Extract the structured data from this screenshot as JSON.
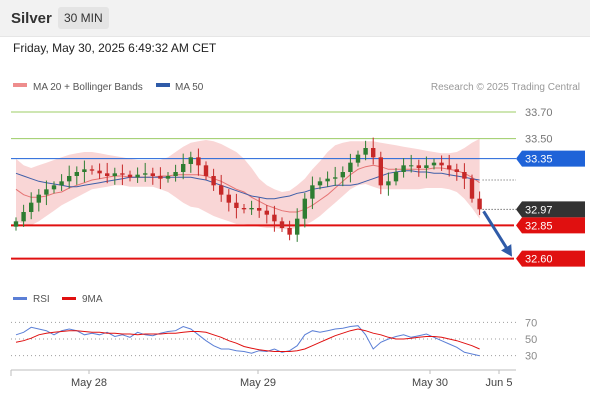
{
  "header": {
    "instrument": "Silver",
    "timeframe": "30 MIN",
    "datetime": "Friday, May 30, 2025 6:49:32 AM CET"
  },
  "legend": {
    "ma20": "MA 20 + Bollinger Bands",
    "ma50": "MA 50",
    "credit": "Research © 2025 Trading Central",
    "rsi": "RSI",
    "rsi_ma": "9MA"
  },
  "colors": {
    "up_candle": "#2e7d32",
    "down_candle": "#c62828",
    "bollinger_fill": "#f8cfcf",
    "ma20": "#e57373",
    "ma50": "#3f5fa8",
    "resistance_green": "#9ccc65",
    "pivot_blue": "#1f63d8",
    "support_red": "#e01010",
    "last_price": "#333333",
    "arrow": "#2f5ba8",
    "rsi_line": "#5b7fd6",
    "rsi_ma_line": "#e01010"
  },
  "chart_data": [
    {
      "type": "candlestick",
      "series": [
        {
          "name": "MA 20 + Bollinger Bands"
        },
        {
          "name": "MA 50"
        }
      ],
      "x_ticks": [
        "May 28",
        "May 29",
        "May 30",
        "Jun 5"
      ],
      "ylim": [
        32.38,
        33.79
      ],
      "levels": [
        {
          "value": 33.7,
          "label": "33.70",
          "kind": "resistance",
          "style": "line",
          "tag": "plain"
        },
        {
          "value": 33.5,
          "label": "33.50",
          "kind": "resistance",
          "style": "line",
          "tag": "plain"
        },
        {
          "value": 33.35,
          "label": "33.35",
          "kind": "pivot",
          "style": "line",
          "tag": "box"
        },
        {
          "value": 32.97,
          "label": "32.97",
          "kind": "last",
          "style": "dotted",
          "tag": "box"
        },
        {
          "value": 32.85,
          "label": "32.85",
          "kind": "support",
          "style": "thick",
          "tag": "box"
        },
        {
          "value": 32.6,
          "label": "32.60",
          "kind": "support",
          "style": "thick",
          "tag": "box"
        }
      ],
      "close": [
        32.88,
        32.95,
        33.02,
        33.08,
        33.12,
        33.15,
        33.18,
        33.22,
        33.25,
        33.27,
        33.26,
        33.24,
        33.22,
        33.24,
        33.23,
        33.21,
        33.23,
        33.24,
        33.22,
        33.2,
        33.22,
        33.25,
        33.31,
        33.36,
        33.3,
        33.22,
        33.15,
        33.08,
        33.02,
        32.98,
        32.97,
        32.98,
        32.96,
        32.93,
        32.88,
        32.83,
        32.78,
        32.9,
        33.05,
        33.15,
        33.18,
        33.2,
        33.21,
        33.25,
        33.32,
        33.38,
        33.43,
        33.36,
        33.15,
        33.18,
        33.25,
        33.3,
        33.3,
        33.28,
        33.3,
        33.32,
        33.3,
        33.27,
        33.25,
        33.2,
        33.05,
        32.97
      ],
      "ma20": [
        33.12,
        33.08,
        33.06,
        33.06,
        33.07,
        33.09,
        33.1,
        33.13,
        33.15,
        33.17,
        33.19,
        33.2,
        33.21,
        33.22,
        33.22,
        33.21,
        33.21,
        33.21,
        33.21,
        33.22,
        33.22,
        33.23,
        33.23,
        33.23,
        33.23,
        33.22,
        33.2,
        33.18,
        33.15,
        33.12,
        33.1,
        33.06,
        33.03,
        33,
        32.98,
        32.96,
        32.95,
        32.95,
        32.97,
        33,
        33.04,
        33.08,
        33.13,
        33.18,
        33.23,
        33.27,
        33.29,
        33.3,
        33.29,
        33.27,
        33.27,
        33.27,
        33.27,
        33.27,
        33.27,
        33.28,
        33.28,
        33.27,
        33.26,
        33.24,
        33.21,
        33.17
      ],
      "ma50": [
        33.24,
        33.22,
        33.2,
        33.18,
        33.17,
        33.16,
        33.15,
        33.14,
        33.14,
        33.15,
        33.16,
        33.17,
        33.18,
        33.19,
        33.2,
        33.21,
        33.21,
        33.21,
        33.21,
        33.21,
        33.21,
        33.21,
        33.21,
        33.21,
        33.2,
        33.19,
        33.17,
        33.15,
        33.13,
        33.11,
        33.09,
        33.07,
        33.06,
        33.05,
        33.05,
        33.06,
        33.07,
        33.09,
        33.1,
        33.12,
        33.13,
        33.14,
        33.15,
        33.15,
        33.15,
        33.16,
        33.18,
        33.2,
        33.22,
        33.24,
        33.25,
        33.26,
        33.26,
        33.25,
        33.25,
        33.24,
        33.24,
        33.23,
        33.22,
        33.21,
        33.2,
        33.19
      ],
      "bb_upper": [
        33.35,
        33.3,
        33.28,
        33.3,
        33.32,
        33.34,
        33.36,
        33.38,
        33.39,
        33.4,
        33.4,
        33.39,
        33.38,
        33.37,
        33.36,
        33.35,
        33.34,
        33.34,
        33.34,
        33.34,
        33.36,
        33.4,
        33.44,
        33.47,
        33.48,
        33.49,
        33.48,
        33.46,
        33.43,
        33.4,
        33.35,
        33.28,
        33.2,
        33.15,
        33.12,
        33.1,
        33.11,
        33.15,
        33.2,
        33.27,
        33.33,
        33.4,
        33.45,
        33.47,
        33.48,
        33.48,
        33.48,
        33.48,
        33.47,
        33.46,
        33.45,
        33.44,
        33.43,
        33.42,
        33.41,
        33.4,
        33.39,
        33.39,
        33.4,
        33.43,
        33.47,
        33.5
      ],
      "bb_lower": [
        32.88,
        32.86,
        32.85,
        32.88,
        32.92,
        32.96,
        33.0,
        33.03,
        33.06,
        33.09,
        33.12,
        33.13,
        33.14,
        33.15,
        33.15,
        33.14,
        33.14,
        33.14,
        33.14,
        33.12,
        33.1,
        33.06,
        33.02,
        32.99,
        32.98,
        32.95,
        32.92,
        32.9,
        32.88,
        32.86,
        32.86,
        32.85,
        32.84,
        32.83,
        32.83,
        32.82,
        32.82,
        32.83,
        32.85,
        32.88,
        32.92,
        32.97,
        33.02,
        33.07,
        33.12,
        33.15,
        33.16,
        33.14,
        33.12,
        33.12,
        33.12,
        33.12,
        33.12,
        33.12,
        33.13,
        33.13,
        33.13,
        33.12,
        33.1,
        33.05,
        32.98,
        32.9
      ]
    },
    {
      "type": "line",
      "series": [
        {
          "name": "RSI",
          "values": [
            55,
            58,
            64,
            62,
            60,
            55,
            60,
            62,
            60,
            55,
            57,
            55,
            58,
            53,
            55,
            52,
            58,
            55,
            54,
            57,
            59,
            60,
            65,
            62,
            55,
            48,
            42,
            38,
            38,
            36,
            35,
            33,
            36,
            35,
            38,
            34,
            36,
            42,
            55,
            60,
            58,
            60,
            62,
            63,
            65,
            66,
            55,
            38,
            46,
            50,
            53,
            55,
            52,
            54,
            56,
            52,
            48,
            44,
            40,
            34,
            32,
            30
          ]
        },
        {
          "name": "9MA",
          "values": [
            46,
            48,
            51,
            55,
            57,
            58,
            59,
            60,
            60,
            59,
            58,
            58,
            57,
            57,
            56,
            56,
            55,
            56,
            56,
            56,
            57,
            57,
            58,
            59,
            59,
            58,
            55,
            52,
            48,
            45,
            41,
            39,
            37,
            36,
            35,
            35,
            35,
            36,
            38,
            42,
            46,
            50,
            54,
            57,
            60,
            62,
            60,
            57,
            55,
            52,
            50,
            50,
            51,
            52,
            53,
            53,
            52,
            50,
            48,
            45,
            42,
            38
          ]
        }
      ],
      "yticks": [
        70,
        50,
        30
      ],
      "ylim": [
        20,
        80
      ]
    }
  ]
}
